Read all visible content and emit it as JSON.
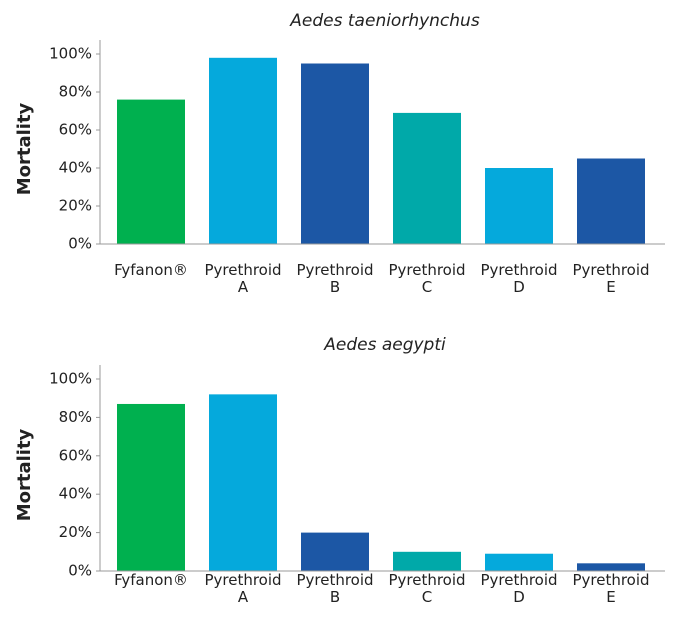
{
  "chart_data": [
    {
      "type": "bar",
      "title": "Aedes taeniorhynchus",
      "ylabel": "Mortality",
      "categories": [
        "Fyfanon®",
        "Pyrethroid A",
        "Pyrethroid B",
        "Pyrethroid C",
        "Pyrethroid D",
        "Pyrethroid E"
      ],
      "values": [
        76,
        98,
        95,
        69,
        40,
        45
      ],
      "colors": [
        "#00b04f",
        "#05a9dc",
        "#1c57a5",
        "#00a9a9",
        "#05a9dc",
        "#1c57a5"
      ],
      "ylim": [
        0,
        100
      ],
      "yticks": [
        {
          "value": 0,
          "label": "0%"
        },
        {
          "value": 20,
          "label": "20%"
        },
        {
          "value": 40,
          "label": "40%"
        },
        {
          "value": 60,
          "label": "60%"
        },
        {
          "value": 80,
          "label": "80%"
        },
        {
          "value": 100,
          "label": "100%"
        }
      ]
    },
    {
      "type": "bar",
      "title": "Aedes aegypti",
      "ylabel": "Mortality",
      "categories": [
        "Fyfanon®",
        "Pyrethroid A",
        "Pyrethroid B",
        "Pyrethroid C",
        "Pyrethroid D",
        "Pyrethroid E"
      ],
      "values": [
        87,
        92,
        20,
        10,
        9,
        4
      ],
      "colors": [
        "#00b04f",
        "#05a9dc",
        "#1c57a5",
        "#00a9a9",
        "#05a9dc",
        "#1c57a5"
      ],
      "ylim": [
        0,
        100
      ],
      "yticks": [
        {
          "value": 0,
          "label": "0%"
        },
        {
          "value": 20,
          "label": "20%"
        },
        {
          "value": 40,
          "label": "40%"
        },
        {
          "value": 60,
          "label": "60%"
        },
        {
          "value": 80,
          "label": "80%"
        },
        {
          "value": 100,
          "label": "100%"
        }
      ]
    }
  ]
}
